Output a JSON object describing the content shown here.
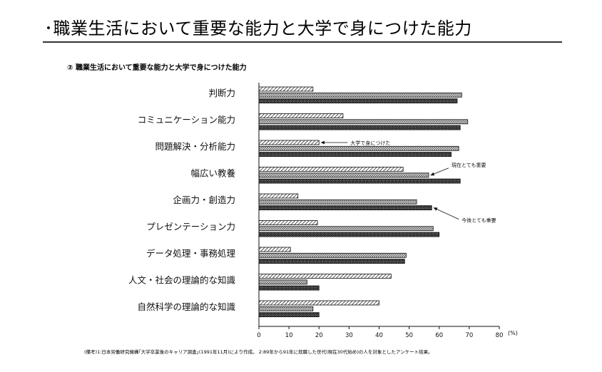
{
  "page": {
    "title": "･職業生活において重要な能力と大学で身につけた能力",
    "subtitle": "② 職業生活において重要な能力と大学で身につけた能力",
    "footnote": "(備考)1:日本労働研究機構｢大学卒業後のキャリア調査｣(1991年11月)により作成。 2:89年から91年に就職した世代(現在30代始め)の人を対象としたアンケート結果。"
  },
  "chart_data": {
    "type": "bar",
    "orientation": "horizontal",
    "categories": [
      "判断力",
      "コミュニケーション能力",
      "問題解決・分析能力",
      "幅広い教養",
      "企画力・創造力",
      "プレゼンテーション力",
      "データ処理・事務処理",
      "人文・社会の理論的な知識",
      "自然科学の理論的な知識"
    ],
    "series": [
      {
        "name": "大学で身につけた",
        "pattern": "diagonal-stripes",
        "values": [
          18,
          28,
          20,
          48,
          13,
          19.5,
          10.5,
          44,
          40
        ]
      },
      {
        "name": "現在とても重要",
        "pattern": "light-crosshatch",
        "values": [
          67.5,
          69.5,
          66.5,
          56.5,
          52.5,
          58,
          49,
          16,
          18
        ]
      },
      {
        "name": "今後とても重要",
        "pattern": "dense-crosshatch",
        "values": [
          66,
          67,
          64,
          67,
          57.5,
          60,
          48.5,
          20,
          20
        ]
      }
    ],
    "xlim": [
      0,
      80
    ],
    "xticks": [
      "0",
      "10",
      "20",
      "30",
      "40",
      "50",
      "60",
      "70",
      "80"
    ],
    "unit": "(%)",
    "annotations": [
      {
        "text": "大学で身につけた",
        "target": "問題解決・分析能力 / 大学で身につけた"
      },
      {
        "text": "現在とても重要",
        "target": "幅広い教養 / 現在とても重要"
      },
      {
        "text": "今後とても重要",
        "target": "企画力・創造力 / 今後とても重要"
      }
    ],
    "grid": false,
    "legend": "none"
  }
}
